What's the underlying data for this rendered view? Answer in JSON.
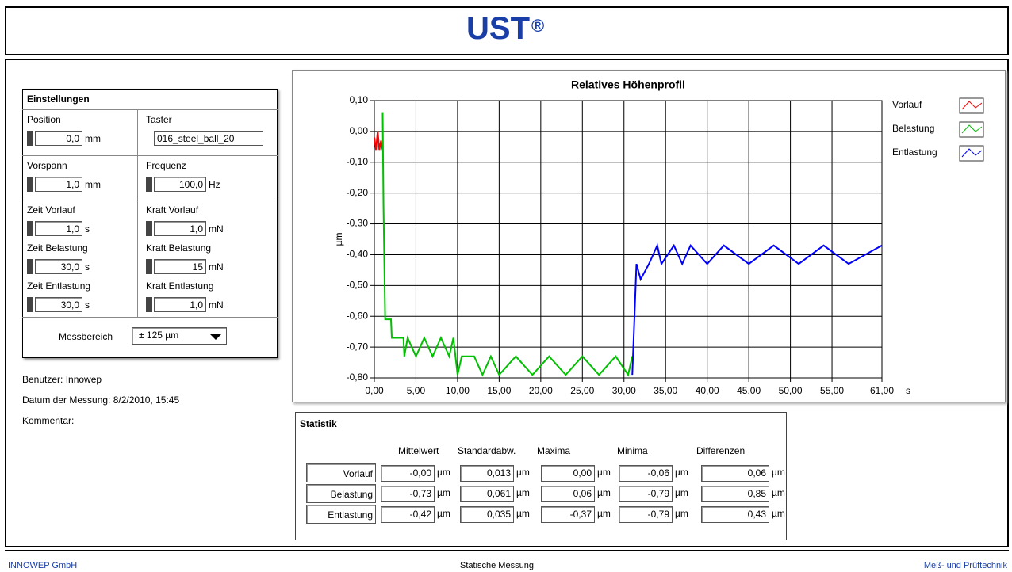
{
  "header": {
    "title": "UST",
    "mark": "®"
  },
  "settings": {
    "title": "Einstellungen",
    "fields": [
      {
        "label": "Position",
        "value": "0,0",
        "unit": "mm"
      },
      {
        "label": "Taster",
        "value": "016_steel_ball_20"
      },
      {
        "label": "Vorspann",
        "value": "1,0",
        "unit": "mm"
      },
      {
        "label": "Frequenz",
        "value": "100,0",
        "unit": "Hz"
      },
      {
        "label": "Zeit Vorlauf",
        "value": "1,0",
        "unit": "s"
      },
      {
        "label": "Kraft Vorlauf",
        "value": "1,0",
        "unit": "mN"
      },
      {
        "label": "Zeit Belastung",
        "value": "30,0",
        "unit": "s"
      },
      {
        "label": "Kraft Belastung",
        "value": "15",
        "unit": "mN"
      },
      {
        "label": "Zeit Entlastung",
        "value": "30,0",
        "unit": "s"
      },
      {
        "label": "Kraft Entlastung",
        "value": "1,0",
        "unit": "mN"
      }
    ],
    "range_label": "Messbereich",
    "range_value": "± 125 µm"
  },
  "info": [
    "Benutzer: Innowep",
    "Datum der Messung: 8/2/2010, 15:45",
    "Kommentar:"
  ],
  "chart": {
    "type": "line",
    "title": "Relatives Höhenprofil",
    "ylabel": "µm",
    "xunit": "s",
    "xlim": [
      0,
      61
    ],
    "ylim": [
      -0.8,
      0.1
    ],
    "grid": true,
    "xticks": [
      {
        "value": 0,
        "label": "0,00"
      },
      {
        "value": 5,
        "label": "5,00"
      },
      {
        "value": 10,
        "label": "10,00"
      },
      {
        "value": 15,
        "label": "15,00"
      },
      {
        "value": 20,
        "label": "20,00"
      },
      {
        "value": 25,
        "label": "25,00"
      },
      {
        "value": 30,
        "label": "30,00"
      },
      {
        "value": 35,
        "label": "35,00"
      },
      {
        "value": 40,
        "label": "40,00"
      },
      {
        "value": 45,
        "label": "45,00"
      },
      {
        "value": 50,
        "label": "50,00"
      },
      {
        "value": 55,
        "label": "55,00"
      },
      {
        "value": 61,
        "label": "61,00"
      }
    ],
    "yticks": [
      {
        "value": 0.1,
        "label": "0,10"
      },
      {
        "value": 0,
        "label": "0,00"
      },
      {
        "value": -0.1,
        "label": "-0,10"
      },
      {
        "value": -0.2,
        "label": "-0,20"
      },
      {
        "value": -0.3,
        "label": "-0,30"
      },
      {
        "value": -0.4,
        "label": "-0,40"
      },
      {
        "value": -0.5,
        "label": "-0,50"
      },
      {
        "value": -0.6,
        "label": "-0,60"
      },
      {
        "value": -0.7,
        "label": "-0,70"
      },
      {
        "value": -0.8,
        "label": "-0,80"
      }
    ],
    "series": [
      {
        "name": "Vorlauf",
        "color": "#ff0000",
        "x": [
          0,
          0.2,
          0.4,
          0.6,
          0.8,
          1.0
        ],
        "values": [
          -0.02,
          -0.06,
          0,
          -0.06,
          -0.03,
          -0.06
        ]
      },
      {
        "name": "Belastung",
        "color": "#00c000",
        "x": [
          1.0,
          1.1,
          1.3,
          2.0,
          2.1,
          3.5,
          3.6,
          4,
          5,
          6,
          7,
          8,
          9,
          9.5,
          10,
          10.5,
          12,
          13,
          14,
          15,
          17,
          19,
          21,
          23,
          25,
          27,
          29,
          30.5,
          31
        ],
        "values": [
          0.06,
          -0.24,
          -0.61,
          -0.61,
          -0.67,
          -0.67,
          -0.73,
          -0.67,
          -0.73,
          -0.67,
          -0.73,
          -0.67,
          -0.73,
          -0.67,
          -0.79,
          -0.73,
          -0.73,
          -0.79,
          -0.73,
          -0.79,
          -0.73,
          -0.79,
          -0.73,
          -0.79,
          -0.73,
          -0.79,
          -0.73,
          -0.79,
          -0.73
        ]
      },
      {
        "name": "Entlastung",
        "color": "#0000ff",
        "x": [
          31,
          31.5,
          32,
          33,
          34,
          34.5,
          36,
          37,
          38,
          40,
          42,
          45,
          48,
          51,
          54,
          57,
          61
        ],
        "values": [
          -0.79,
          -0.43,
          -0.48,
          -0.43,
          -0.37,
          -0.43,
          -0.37,
          -0.43,
          -0.37,
          -0.43,
          -0.37,
          -0.43,
          -0.37,
          -0.43,
          -0.37,
          -0.43,
          -0.37
        ]
      }
    ]
  },
  "statistik": {
    "title": "Statistik",
    "unit": "µm",
    "columns": [
      "Mittelwert",
      "Standardabw.",
      "Maxima",
      "Minima",
      "Differenzen"
    ],
    "rows": [
      {
        "name": "Vorlauf",
        "values": [
          "-0,00",
          "0,013",
          "0,00",
          "-0,06",
          "0,06"
        ]
      },
      {
        "name": "Belastung",
        "values": [
          "-0,73",
          "0,061",
          "0,06",
          "-0,79",
          "0,85"
        ]
      },
      {
        "name": "Entlastung",
        "values": [
          "-0,42",
          "0,035",
          "-0,37",
          "-0,79",
          "0,43"
        ]
      }
    ]
  },
  "footer": {
    "left": "INNOWEP GmbH",
    "center": "Statische Messung",
    "right": "Meß- und Prüftechnik"
  }
}
